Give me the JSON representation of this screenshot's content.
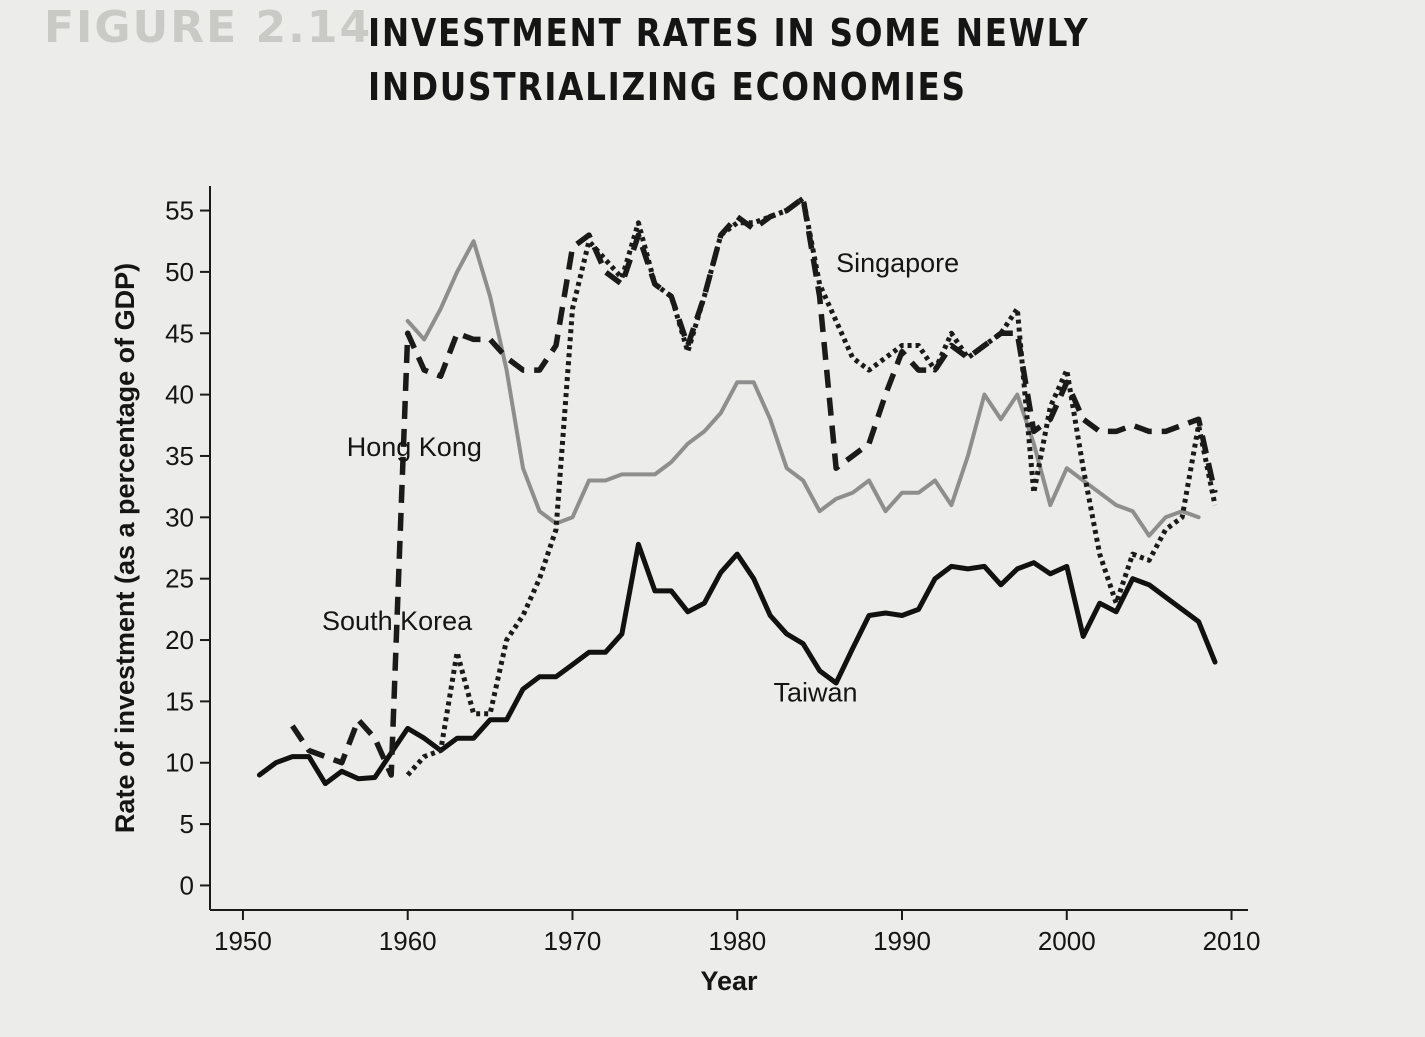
{
  "figure": {
    "label": "FIGURE 2.14",
    "title": "INVESTMENT RATES IN SOME NEWLY INDUSTRIALIZING ECONOMIES"
  },
  "chart_data": {
    "type": "line",
    "title": "INVESTMENT RATES IN SOME NEWLY INDUSTRIALIZING ECONOMIES",
    "xlabel": "Year",
    "ylabel": "Rate of investment (as a percentage of GDP)",
    "xlim": [
      1948,
      2011
    ],
    "ylim": [
      -2,
      57
    ],
    "xticks": [
      1950,
      1960,
      1970,
      1980,
      1990,
      2000,
      2010
    ],
    "yticks": [
      0,
      5,
      10,
      15,
      20,
      25,
      30,
      35,
      40,
      45,
      50,
      55
    ],
    "grid": false,
    "legend": "none",
    "series": [
      {
        "name": "Singapore",
        "style": "dotted",
        "color": "#1a1a1a",
        "x": [
          1960,
          1961,
          1962,
          1963,
          1964,
          1965,
          1966,
          1967,
          1968,
          1969,
          1970,
          1971,
          1972,
          1973,
          1974,
          1975,
          1976,
          1977,
          1978,
          1979,
          1980,
          1981,
          1982,
          1983,
          1984,
          1985,
          1986,
          1987,
          1988,
          1989,
          1990,
          1991,
          1992,
          1993,
          1994,
          1995,
          1996,
          1997,
          1998,
          1999,
          2000,
          2001,
          2002,
          2003,
          2004,
          2005,
          2006,
          2007,
          2008,
          2009
        ],
        "y": [
          9,
          10.5,
          11,
          19,
          14,
          14,
          20,
          22,
          25,
          29,
          47,
          52.5,
          51,
          49.5,
          54,
          49,
          48,
          43.5,
          48,
          53,
          54,
          54,
          54.5,
          55,
          56,
          49,
          46,
          43,
          42,
          43,
          44,
          44,
          42,
          45,
          43,
          44,
          45,
          47,
          32,
          39,
          42,
          34,
          27,
          23,
          27,
          26.5,
          29,
          30,
          37.5,
          31
        ]
      },
      {
        "name": "Hong Kong",
        "style": "solid",
        "color": "#8e8e8e",
        "x": [
          1960,
          1961,
          1962,
          1963,
          1964,
          1965,
          1966,
          1967,
          1968,
          1969,
          1970,
          1971,
          1972,
          1973,
          1974,
          1975,
          1976,
          1977,
          1978,
          1979,
          1980,
          1981,
          1982,
          1983,
          1984,
          1985,
          1986,
          1987,
          1988,
          1989,
          1990,
          1991,
          1992,
          1993,
          1994,
          1995,
          1996,
          1997,
          1998,
          1999,
          2000,
          2001,
          2002,
          2003,
          2004,
          2005,
          2006,
          2007,
          2008
        ],
        "y": [
          46,
          44.5,
          47,
          50,
          52.5,
          48,
          42,
          34,
          30.5,
          29.5,
          30,
          33,
          33,
          33.5,
          33.5,
          33.5,
          34.5,
          36,
          37,
          38.5,
          41,
          41,
          38,
          34,
          33,
          30.5,
          31.5,
          32,
          33,
          30.5,
          32,
          32,
          33,
          31,
          35,
          40,
          38,
          40,
          36,
          31,
          34,
          33,
          32,
          31,
          30.5,
          28.5,
          30,
          30.5,
          30
        ]
      },
      {
        "name": "South Korea",
        "style": "dashed",
        "color": "#1a1a1a",
        "x": [
          1953,
          1954,
          1955,
          1956,
          1957,
          1958,
          1959,
          1960,
          1961,
          1962,
          1963,
          1964,
          1965,
          1966,
          1967,
          1968,
          1969,
          1970,
          1971,
          1972,
          1973,
          1974,
          1975,
          1976,
          1977,
          1978,
          1979,
          1980,
          1981,
          1982,
          1983,
          1984,
          1985,
          1986,
          1987,
          1988,
          1989,
          1990,
          1991,
          1992,
          1993,
          1994,
          1995,
          1996,
          1997,
          1998,
          1999,
          2000,
          2001,
          2002,
          2003,
          2004,
          2005,
          2006,
          2007,
          2008,
          2009
        ],
        "y": [
          13,
          11,
          10.5,
          10,
          13.5,
          12,
          9,
          45,
          42,
          41.5,
          45,
          44.5,
          44.5,
          43,
          42,
          42,
          44,
          52,
          53,
          50,
          49,
          53,
          49,
          48,
          44,
          48,
          53,
          54.5,
          53.5,
          54.5,
          55,
          56,
          48,
          34,
          35,
          36,
          40,
          43.5,
          42,
          42,
          44,
          43,
          44,
          45,
          45,
          37,
          38,
          41,
          38,
          37,
          37,
          37.5,
          37,
          37,
          37.5,
          38,
          32
        ]
      },
      {
        "name": "Taiwan",
        "style": "solid-bold",
        "color": "#111111",
        "x": [
          1951,
          1952,
          1953,
          1954,
          1955,
          1956,
          1957,
          1958,
          1959,
          1960,
          1961,
          1962,
          1963,
          1964,
          1965,
          1966,
          1967,
          1968,
          1969,
          1970,
          1971,
          1972,
          1973,
          1974,
          1975,
          1976,
          1977,
          1978,
          1979,
          1980,
          1981,
          1982,
          1983,
          1984,
          1985,
          1986,
          1987,
          1988,
          1989,
          1990,
          1991,
          1992,
          1993,
          1994,
          1995,
          1996,
          1997,
          1998,
          1999,
          2000,
          2001,
          2002,
          2003,
          2004,
          2005,
          2006,
          2007,
          2008,
          2009
        ],
        "y": [
          9,
          10,
          10.5,
          10.5,
          8.3,
          9.3,
          8.7,
          8.8,
          10.8,
          12.8,
          12,
          11,
          12,
          12,
          13.5,
          13.5,
          16,
          17,
          17,
          18,
          19,
          19,
          20.5,
          27.8,
          24,
          24,
          22.3,
          23,
          25.5,
          27,
          25,
          22,
          20.5,
          19.7,
          17.5,
          16.5,
          19.3,
          22,
          22.2,
          22,
          22.5,
          25,
          26,
          25.8,
          26,
          24.5,
          25.8,
          26.3,
          25.4,
          26,
          20.3,
          23,
          22.3,
          25,
          24.5,
          23.5,
          22.5,
          21.5,
          18.2
        ]
      }
    ],
    "annotations": [
      {
        "text": "Singapore",
        "x": 1986,
        "y": 50
      },
      {
        "text": "Hong Kong",
        "x": 1956.3,
        "y": 35
      },
      {
        "text": "South Korea",
        "x": 1954.8,
        "y": 20.8
      },
      {
        "text": "Taiwan",
        "x": 1982.2,
        "y": 15
      }
    ]
  }
}
